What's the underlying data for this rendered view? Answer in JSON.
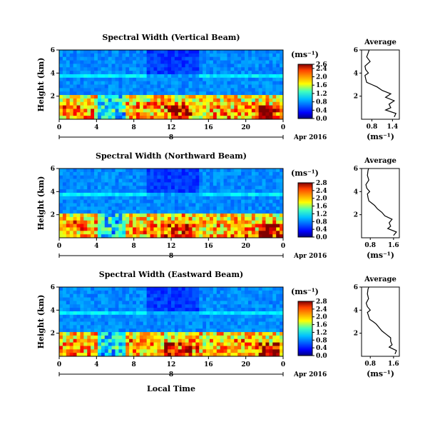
{
  "figure": {
    "xlabel": "Local Time",
    "month_label": "Apr 2016",
    "day_label": "8",
    "colorbar_unit": "(ms⁻¹)",
    "avg_title": "Average",
    "avg_xlabel": "(ms⁻¹)"
  },
  "chart_data": [
    {
      "type": "heatmap",
      "title": "Spectral Width (Vertical Beam)",
      "ylabel": "Height (km)",
      "xticks": [
        "0",
        "4",
        "8",
        "12",
        "16",
        "20",
        "0"
      ],
      "yticks": [
        "2",
        "4",
        "6"
      ],
      "ylim": [
        0,
        6
      ],
      "xlim_hours": [
        0,
        24
      ],
      "colorbar": {
        "min": 0.0,
        "max": 2.6,
        "ticks": [
          "0.0",
          "0.4",
          "0.8",
          "1.2",
          "1.6",
          "2.0",
          "2.4",
          "2.6"
        ]
      },
      "average_profile": {
        "title": "Average",
        "xticks": [
          "0.8",
          "1.4"
        ],
        "xlim": [
          0.5,
          1.6
        ],
        "yticks": [
          "2",
          "4",
          "6"
        ],
        "height_km": [
          0.2,
          0.5,
          0.8,
          1.0,
          1.3,
          1.6,
          1.9,
          2.2,
          2.5,
          2.8,
          3.0,
          3.2,
          3.5,
          3.8,
          4.0,
          4.3,
          4.6,
          5.0,
          5.4,
          5.8,
          6.0
        ],
        "value": [
          1.45,
          1.5,
          1.2,
          1.35,
          1.3,
          1.45,
          1.2,
          1.35,
          1.1,
          0.95,
          0.8,
          0.65,
          0.62,
          0.6,
          0.7,
          0.62,
          0.6,
          0.75,
          0.65,
          0.7,
          0.72
        ]
      }
    },
    {
      "type": "heatmap",
      "title": "Spectral Width (Northward Beam)",
      "ylabel": "Height (km)",
      "xticks": [
        "0",
        "4",
        "8",
        "12",
        "16",
        "20",
        "0"
      ],
      "yticks": [
        "2",
        "4",
        "6"
      ],
      "ylim": [
        0,
        6
      ],
      "xlim_hours": [
        0,
        24
      ],
      "colorbar": {
        "min": 0.0,
        "max": 2.8,
        "ticks": [
          "0.0",
          "0.4",
          "0.8",
          "1.2",
          "1.6",
          "2.0",
          "2.4",
          "2.8"
        ]
      },
      "average_profile": {
        "title": "Average",
        "xticks": [
          "0.8",
          "1.6"
        ],
        "xlim": [
          0.5,
          1.8
        ],
        "yticks": [
          "2",
          "4",
          "6"
        ],
        "height_km": [
          0.2,
          0.5,
          0.8,
          1.0,
          1.3,
          1.6,
          1.9,
          2.2,
          2.5,
          2.8,
          3.0,
          3.2,
          3.5,
          3.8,
          4.0,
          4.3,
          4.6,
          5.0,
          5.4,
          5.8,
          6.0
        ],
        "value": [
          1.6,
          1.7,
          1.4,
          1.5,
          1.45,
          1.55,
          1.3,
          1.2,
          1.05,
          0.95,
          0.85,
          0.75,
          0.72,
          0.7,
          0.78,
          0.68,
          0.65,
          0.75,
          0.7,
          0.72,
          0.74
        ]
      }
    },
    {
      "type": "heatmap",
      "title": "Spectral Width (Eastward Beam)",
      "ylabel": "Height (km)",
      "xticks": [
        "0",
        "4",
        "8",
        "12",
        "16",
        "20",
        "0"
      ],
      "yticks": [
        "2",
        "4",
        "6"
      ],
      "ylim": [
        0,
        6
      ],
      "xlim_hours": [
        0,
        24
      ],
      "colorbar": {
        "min": 0.0,
        "max": 2.8,
        "ticks": [
          "0.0",
          "0.4",
          "0.8",
          "1.2",
          "1.6",
          "2.0",
          "2.4",
          "2.8"
        ]
      },
      "average_profile": {
        "title": "Average",
        "xticks": [
          "0.8",
          "1.6"
        ],
        "xlim": [
          0.5,
          1.8
        ],
        "yticks": [
          "2",
          "4",
          "6"
        ],
        "height_km": [
          0.2,
          0.5,
          0.8,
          1.0,
          1.3,
          1.6,
          1.9,
          2.2,
          2.5,
          2.8,
          3.0,
          3.2,
          3.5,
          3.8,
          4.0,
          4.3,
          4.6,
          5.0,
          5.4,
          5.8,
          6.0
        ],
        "value": [
          1.65,
          1.7,
          1.45,
          1.55,
          1.5,
          1.5,
          1.35,
          1.2,
          1.1,
          1.0,
          0.9,
          0.78,
          0.74,
          0.7,
          0.8,
          0.7,
          0.66,
          0.74,
          0.7,
          0.72,
          0.75
        ]
      }
    }
  ]
}
